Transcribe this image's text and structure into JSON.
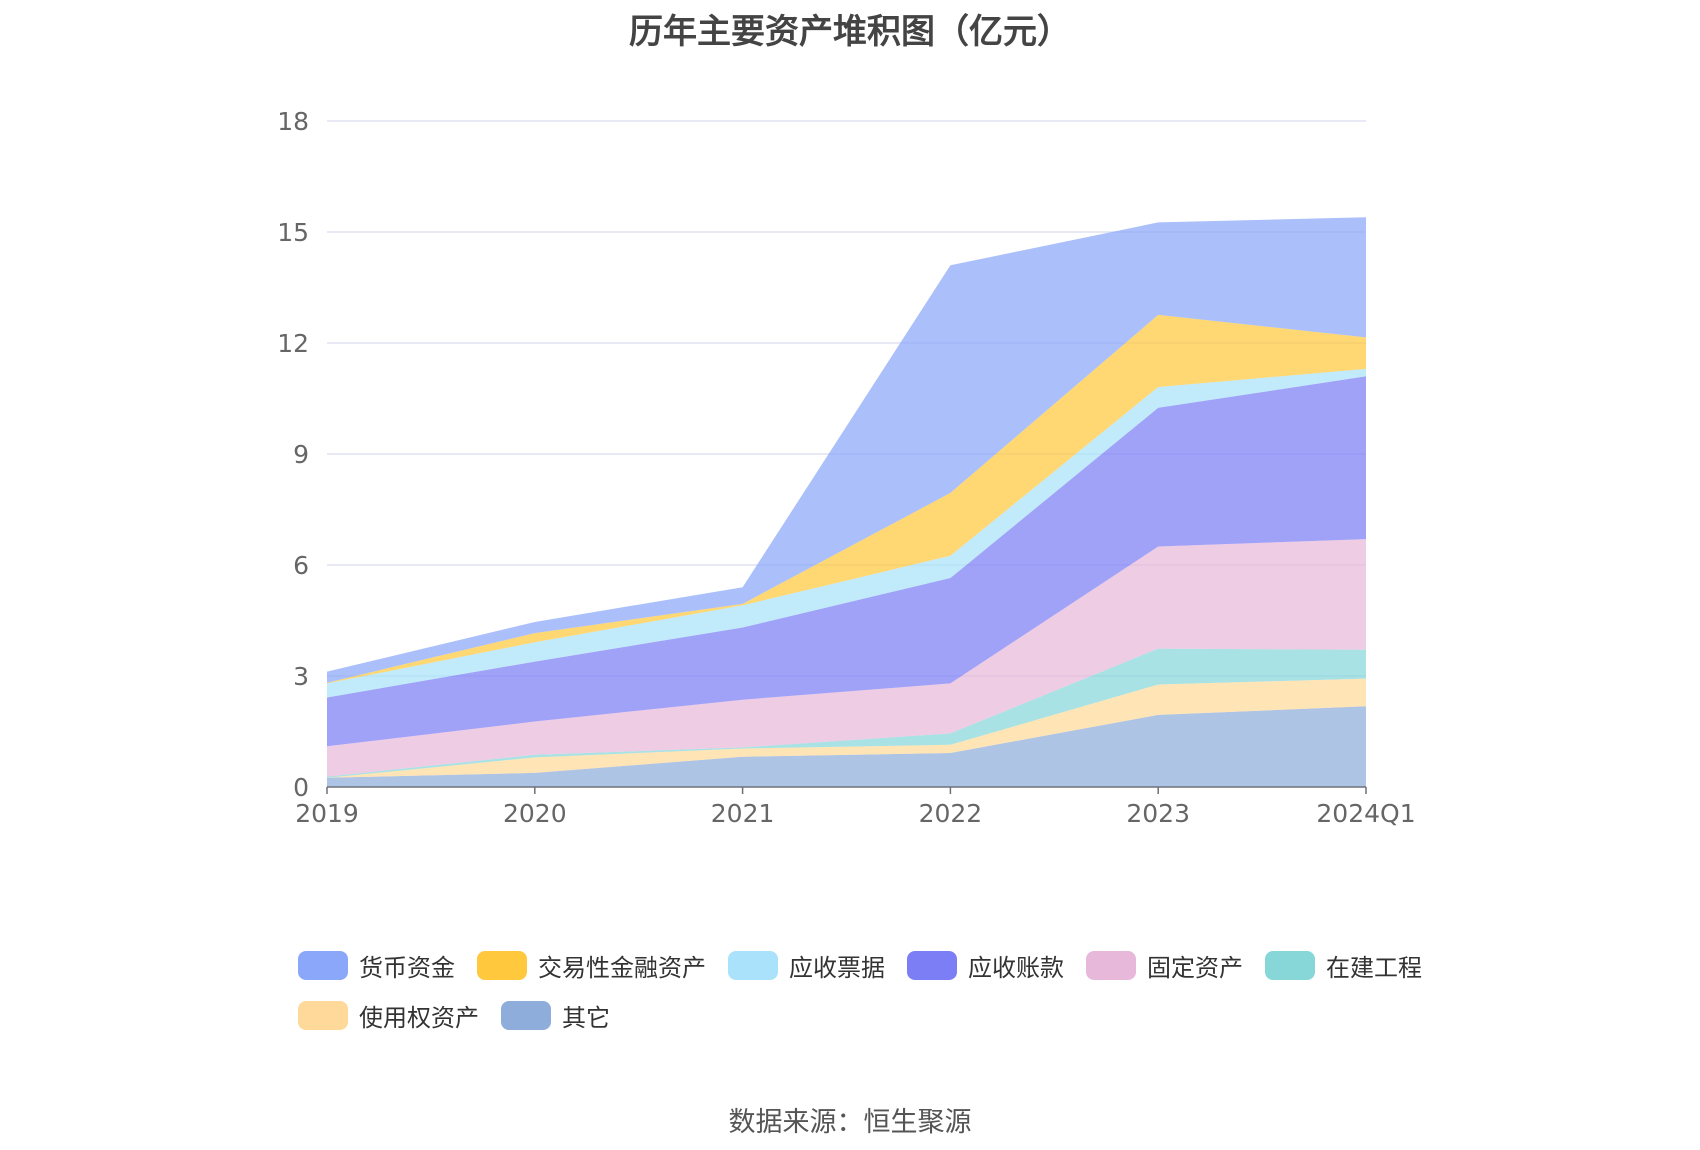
{
  "chart_data": {
    "type": "area",
    "stacked": true,
    "title": "历年主要资产堆积图（亿元）",
    "xlabel": "",
    "ylabel": "",
    "ylim": [
      0,
      18
    ],
    "yticks": [
      0,
      3,
      6,
      9,
      12,
      15,
      18
    ],
    "grid": true,
    "legend_position": "bottom",
    "categories": [
      "2019",
      "2020",
      "2021",
      "2022",
      "2023",
      "2024Q1"
    ],
    "series": [
      {
        "name": "其它",
        "color": "#8fadda",
        "values": [
          0.25,
          0.38,
          0.82,
          0.92,
          1.95,
          2.18
        ]
      },
      {
        "name": "使用权资产",
        "color": "#ffd99a",
        "values": [
          0.0,
          0.42,
          0.22,
          0.22,
          0.82,
          0.75
        ]
      },
      {
        "name": "在建工程",
        "color": "#87d7d9",
        "values": [
          0.03,
          0.07,
          0.03,
          0.31,
          0.97,
          0.78
        ]
      },
      {
        "name": "固定资产",
        "color": "#e7b8da",
        "values": [
          0.82,
          0.9,
          1.29,
          1.35,
          2.76,
          2.99
        ]
      },
      {
        "name": "应收账款",
        "color": "#7b7ef5",
        "values": [
          1.32,
          1.62,
          1.95,
          2.85,
          3.75,
          4.4
        ]
      },
      {
        "name": "应收票据",
        "color": "#a9e2fa",
        "values": [
          0.38,
          0.52,
          0.6,
          0.6,
          0.56,
          0.2
        ]
      },
      {
        "name": "交易性金融资产",
        "color": "#ffc83d",
        "values": [
          0.02,
          0.25,
          0.04,
          1.7,
          1.95,
          0.85
        ]
      },
      {
        "name": "货币资金",
        "color": "#8aa7fa",
        "values": [
          0.3,
          0.3,
          0.45,
          6.15,
          2.5,
          3.25
        ]
      }
    ],
    "legend": [
      "货币资金",
      "交易性金融资产",
      "应收票据",
      "应收账款",
      "固定资产",
      "在建工程",
      "使用权资产",
      "其它"
    ],
    "source_note": "数据来源：恒生聚源"
  }
}
